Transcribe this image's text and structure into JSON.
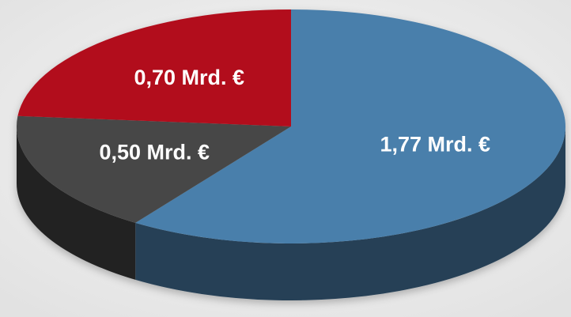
{
  "chart_data": {
    "type": "pie",
    "categories": [
      null,
      null,
      null
    ],
    "values": [
      1.77,
      0.5,
      0.7
    ],
    "value_labels": [
      "1,77 Mrd. €",
      "0,50 Mrd. €",
      "0,70 Mrd. €"
    ],
    "colors": [
      "#4a7fab",
      "#474747",
      "#b20e1e"
    ]
  }
}
